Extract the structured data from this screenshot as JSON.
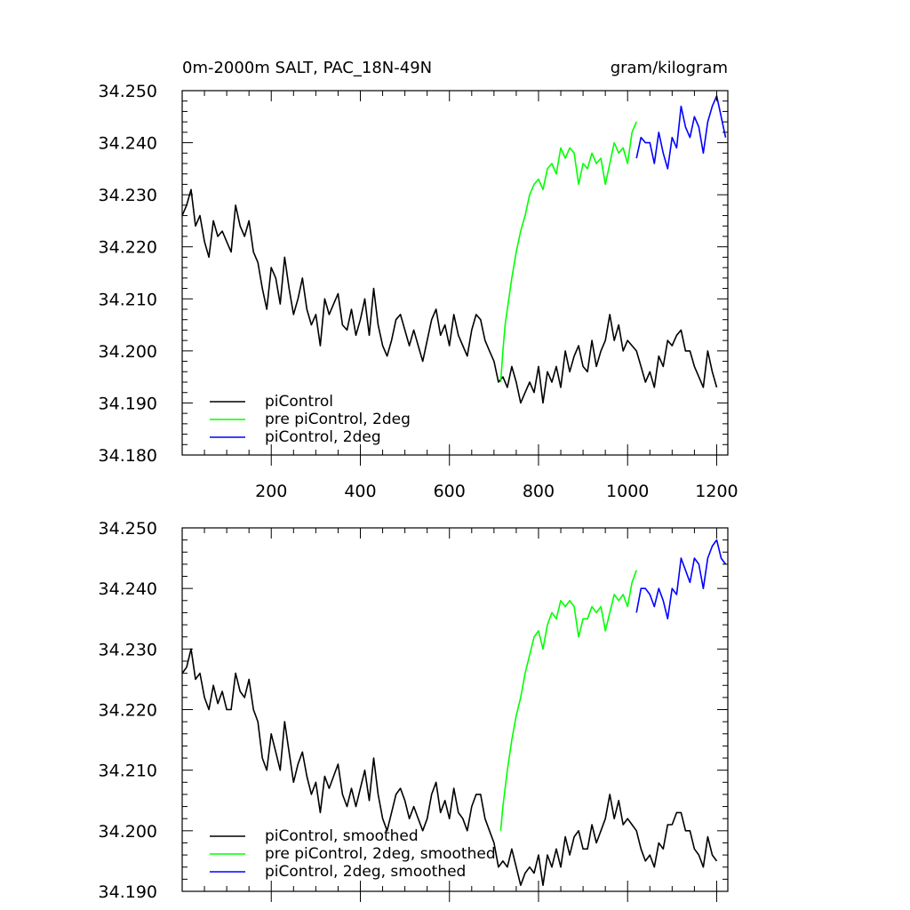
{
  "chart_data": [
    {
      "type": "line",
      "title_left": "0m-2000m SALT, PAC_18N-49N",
      "title_right": "gram/kilogram",
      "xlabel": "",
      "ylabel": "",
      "xlim": [
        0,
        1225
      ],
      "ylim": [
        34.18,
        34.25
      ],
      "xticks": [
        200,
        400,
        600,
        800,
        1000,
        1200
      ],
      "xtick_labels": [
        "200",
        "400",
        "600",
        "800",
        "1000",
        "1200"
      ],
      "yticks": [
        34.18,
        34.19,
        34.2,
        34.21,
        34.22,
        34.23,
        34.24,
        34.25
      ],
      "ytick_labels": [
        "34.180",
        "34.190",
        "34.200",
        "34.210",
        "34.220",
        "34.230",
        "34.240",
        "34.250"
      ],
      "legend_position": "bottom-left",
      "series": [
        {
          "name": "piControl",
          "color": "#000000",
          "x": [
            0,
            10,
            20,
            30,
            40,
            50,
            60,
            70,
            80,
            90,
            100,
            110,
            120,
            130,
            140,
            150,
            160,
            170,
            180,
            190,
            200,
            210,
            220,
            230,
            240,
            250,
            260,
            270,
            280,
            290,
            300,
            310,
            320,
            330,
            340,
            350,
            360,
            370,
            380,
            390,
            400,
            410,
            420,
            430,
            440,
            450,
            460,
            470,
            480,
            490,
            500,
            510,
            520,
            530,
            540,
            550,
            560,
            570,
            580,
            590,
            600,
            610,
            620,
            630,
            640,
            650,
            660,
            670,
            680,
            690,
            700,
            710,
            720,
            730,
            740,
            750,
            760,
            770,
            780,
            790,
            800,
            810,
            820,
            830,
            840,
            850,
            860,
            870,
            880,
            890,
            900,
            910,
            920,
            930,
            940,
            950,
            960,
            970,
            980,
            990,
            1000,
            1010,
            1020,
            1030,
            1040,
            1050,
            1060,
            1070,
            1080,
            1090,
            1100,
            1110,
            1120,
            1130,
            1140,
            1150,
            1160,
            1170,
            1180,
            1190,
            1200
          ],
          "y": [
            34.226,
            34.228,
            34.231,
            34.224,
            34.226,
            34.221,
            34.218,
            34.225,
            34.222,
            34.223,
            34.221,
            34.219,
            34.228,
            34.224,
            34.222,
            34.225,
            34.219,
            34.217,
            34.212,
            34.208,
            34.216,
            34.214,
            34.209,
            34.218,
            34.212,
            34.207,
            34.21,
            34.214,
            34.208,
            34.205,
            34.207,
            34.201,
            34.21,
            34.207,
            34.209,
            34.211,
            34.205,
            34.204,
            34.208,
            34.203,
            34.206,
            34.21,
            34.203,
            34.212,
            34.205,
            34.201,
            34.199,
            34.202,
            34.206,
            34.207,
            34.204,
            34.201,
            34.204,
            34.201,
            34.198,
            34.202,
            34.206,
            34.208,
            34.203,
            34.205,
            34.201,
            34.207,
            34.203,
            34.201,
            34.199,
            34.204,
            34.207,
            34.206,
            34.202,
            34.2,
            34.198,
            34.194,
            34.195,
            34.193,
            34.197,
            34.194,
            34.19,
            34.192,
            34.194,
            34.192,
            34.197,
            34.19,
            34.196,
            34.194,
            34.197,
            34.193,
            34.2,
            34.196,
            34.199,
            34.201,
            34.197,
            34.196,
            34.202,
            34.197,
            34.2,
            34.202,
            34.207,
            34.202,
            34.205,
            34.2,
            34.202,
            34.201,
            34.2,
            34.197,
            34.194,
            34.196,
            34.193,
            34.199,
            34.197,
            34.202,
            34.201,
            34.203,
            34.204,
            34.2,
            34.2,
            34.197,
            34.195,
            34.193,
            34.2,
            34.196,
            34.193
          ]
        },
        {
          "name": "pre piControl, 2deg",
          "color": "#00ff00",
          "x": [
            715,
            720,
            725,
            730,
            740,
            750,
            760,
            770,
            780,
            790,
            800,
            810,
            820,
            830,
            840,
            850,
            860,
            870,
            880,
            890,
            900,
            910,
            920,
            930,
            940,
            950,
            960,
            970,
            980,
            990,
            1000,
            1010,
            1020
          ],
          "y": [
            34.194,
            34.2,
            34.205,
            34.208,
            34.214,
            34.219,
            34.223,
            34.226,
            34.23,
            34.232,
            34.233,
            34.231,
            34.235,
            34.236,
            34.234,
            34.239,
            34.237,
            34.239,
            34.238,
            34.232,
            34.236,
            34.235,
            34.238,
            34.236,
            34.237,
            34.232,
            34.236,
            34.24,
            34.238,
            34.239,
            34.236,
            34.242,
            34.244
          ]
        },
        {
          "name": "piControl, 2deg",
          "color": "#0000ff",
          "x": [
            1020,
            1030,
            1040,
            1050,
            1060,
            1070,
            1080,
            1090,
            1100,
            1110,
            1120,
            1130,
            1140,
            1150,
            1160,
            1170,
            1180,
            1190,
            1200,
            1210,
            1220
          ],
          "y": [
            34.237,
            34.241,
            34.24,
            34.24,
            34.236,
            34.242,
            34.238,
            34.235,
            34.241,
            34.239,
            34.247,
            34.243,
            34.241,
            34.245,
            34.243,
            34.238,
            34.244,
            34.247,
            34.249,
            34.245,
            34.241
          ]
        }
      ]
    },
    {
      "type": "line",
      "xlabel": "",
      "ylabel": "",
      "xlim": [
        0,
        1225
      ],
      "ylim": [
        34.19,
        34.25
      ],
      "xticks": [
        200,
        400,
        600,
        800,
        1000,
        1200
      ],
      "yticks": [
        34.19,
        34.2,
        34.21,
        34.22,
        34.23,
        34.24,
        34.25
      ],
      "ytick_labels": [
        "34.190",
        "34.200",
        "34.210",
        "34.220",
        "34.230",
        "34.240",
        "34.250"
      ],
      "legend_position": "bottom-left",
      "series": [
        {
          "name": "piControl, smoothed",
          "color": "#000000",
          "x": [
            0,
            10,
            20,
            30,
            40,
            50,
            60,
            70,
            80,
            90,
            100,
            110,
            120,
            130,
            140,
            150,
            160,
            170,
            180,
            190,
            200,
            210,
            220,
            230,
            240,
            250,
            260,
            270,
            280,
            290,
            300,
            310,
            320,
            330,
            340,
            350,
            360,
            370,
            380,
            390,
            400,
            410,
            420,
            430,
            440,
            450,
            460,
            470,
            480,
            490,
            500,
            510,
            520,
            530,
            540,
            550,
            560,
            570,
            580,
            590,
            600,
            610,
            620,
            630,
            640,
            650,
            660,
            670,
            680,
            690,
            700,
            710,
            720,
            730,
            740,
            750,
            760,
            770,
            780,
            790,
            800,
            810,
            820,
            830,
            840,
            850,
            860,
            870,
            880,
            890,
            900,
            910,
            920,
            930,
            940,
            950,
            960,
            970,
            980,
            990,
            1000,
            1010,
            1020,
            1030,
            1040,
            1050,
            1060,
            1070,
            1080,
            1090,
            1100,
            1110,
            1120,
            1130,
            1140,
            1150,
            1160,
            1170,
            1180,
            1190,
            1200
          ],
          "y": [
            34.226,
            34.227,
            34.23,
            34.225,
            34.226,
            34.222,
            34.22,
            34.224,
            34.221,
            34.223,
            34.22,
            34.22,
            34.226,
            34.223,
            34.222,
            34.225,
            34.22,
            34.218,
            34.212,
            34.21,
            34.216,
            34.213,
            34.21,
            34.218,
            34.213,
            34.208,
            34.211,
            34.213,
            34.209,
            34.206,
            34.208,
            34.203,
            34.209,
            34.207,
            34.209,
            34.211,
            34.206,
            34.204,
            34.207,
            34.204,
            34.207,
            34.21,
            34.205,
            34.212,
            34.206,
            34.202,
            34.2,
            34.203,
            34.206,
            34.207,
            34.205,
            34.202,
            34.204,
            34.202,
            34.2,
            34.202,
            34.206,
            34.208,
            34.203,
            34.205,
            34.202,
            34.207,
            34.203,
            34.202,
            34.2,
            34.204,
            34.206,
            34.206,
            34.202,
            34.2,
            34.198,
            34.194,
            34.195,
            34.194,
            34.197,
            34.194,
            34.191,
            34.193,
            34.194,
            34.193,
            34.196,
            34.191,
            34.196,
            34.194,
            34.197,
            34.194,
            34.199,
            34.196,
            34.199,
            34.2,
            34.197,
            34.197,
            34.201,
            34.198,
            34.2,
            34.202,
            34.206,
            34.202,
            34.205,
            34.201,
            34.202,
            34.201,
            34.2,
            34.197,
            34.195,
            34.196,
            34.194,
            34.198,
            34.197,
            34.201,
            34.201,
            34.203,
            34.203,
            34.2,
            34.2,
            34.197,
            34.196,
            34.194,
            34.199,
            34.196,
            34.195
          ]
        },
        {
          "name": "pre piControl, 2deg, smoothed",
          "color": "#00ff00",
          "x": [
            715,
            720,
            725,
            730,
            740,
            750,
            760,
            770,
            780,
            790,
            800,
            810,
            820,
            830,
            840,
            850,
            860,
            870,
            880,
            890,
            900,
            910,
            920,
            930,
            940,
            950,
            960,
            970,
            980,
            990,
            1000,
            1010,
            1020
          ],
          "y": [
            34.2,
            34.204,
            34.207,
            34.21,
            34.215,
            34.219,
            34.222,
            34.226,
            34.229,
            34.232,
            34.233,
            34.23,
            34.234,
            34.236,
            34.235,
            34.238,
            34.237,
            34.238,
            34.237,
            34.232,
            34.235,
            34.235,
            34.237,
            34.236,
            34.237,
            34.233,
            34.236,
            34.239,
            34.238,
            34.239,
            34.237,
            34.241,
            34.243
          ]
        },
        {
          "name": "piControl, 2deg, smoothed",
          "color": "#0000ff",
          "x": [
            1020,
            1030,
            1040,
            1050,
            1060,
            1070,
            1080,
            1090,
            1100,
            1110,
            1120,
            1130,
            1140,
            1150,
            1160,
            1170,
            1180,
            1190,
            1200,
            1210,
            1220
          ],
          "y": [
            34.236,
            34.24,
            34.24,
            34.239,
            34.237,
            34.24,
            34.238,
            34.235,
            34.24,
            34.239,
            34.245,
            34.243,
            34.241,
            34.245,
            34.244,
            34.24,
            34.245,
            34.247,
            34.248,
            34.245,
            34.244
          ]
        }
      ]
    }
  ]
}
